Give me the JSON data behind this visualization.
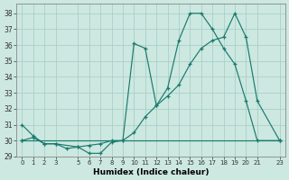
{
  "xlabel": "Humidex (Indice chaleur)",
  "bg_color": "#cce8e0",
  "grid_color": "#aacfc8",
  "line_color": "#1a7a6e",
  "xlim": [
    -0.5,
    23.5
  ],
  "ylim": [
    29,
    38.6
  ],
  "yticks": [
    29,
    30,
    31,
    32,
    33,
    34,
    35,
    36,
    37,
    38
  ],
  "xticks": [
    0,
    1,
    2,
    3,
    5,
    6,
    7,
    8,
    9,
    10,
    11,
    12,
    13,
    14,
    15,
    16,
    17,
    18,
    19,
    20,
    21,
    23
  ],
  "series1_x": [
    0,
    1,
    2,
    3,
    4,
    5,
    6,
    7,
    8,
    9,
    10,
    11,
    12,
    13,
    14,
    15,
    16,
    17,
    18,
    19,
    20,
    21,
    23
  ],
  "series1_y": [
    31.0,
    30.3,
    29.8,
    29.8,
    29.5,
    29.6,
    29.2,
    29.2,
    29.9,
    30.0,
    36.1,
    35.8,
    32.2,
    33.3,
    36.3,
    38.0,
    38.0,
    37.0,
    35.8,
    34.8,
    32.5,
    30.0,
    30.0
  ],
  "series2_x": [
    0,
    1,
    2,
    3,
    5,
    6,
    7,
    8,
    9,
    10,
    11,
    12,
    13,
    14,
    15,
    16,
    17,
    18,
    19,
    20,
    21,
    23
  ],
  "series2_y": [
    30.0,
    30.2,
    29.8,
    29.8,
    29.6,
    29.7,
    29.8,
    30.0,
    30.0,
    30.5,
    31.5,
    32.2,
    32.8,
    33.5,
    34.8,
    35.8,
    36.3,
    36.5,
    38.0,
    36.5,
    32.5,
    30.0
  ],
  "series3_x": [
    0,
    23
  ],
  "series3_y": [
    30.0,
    30.0
  ]
}
